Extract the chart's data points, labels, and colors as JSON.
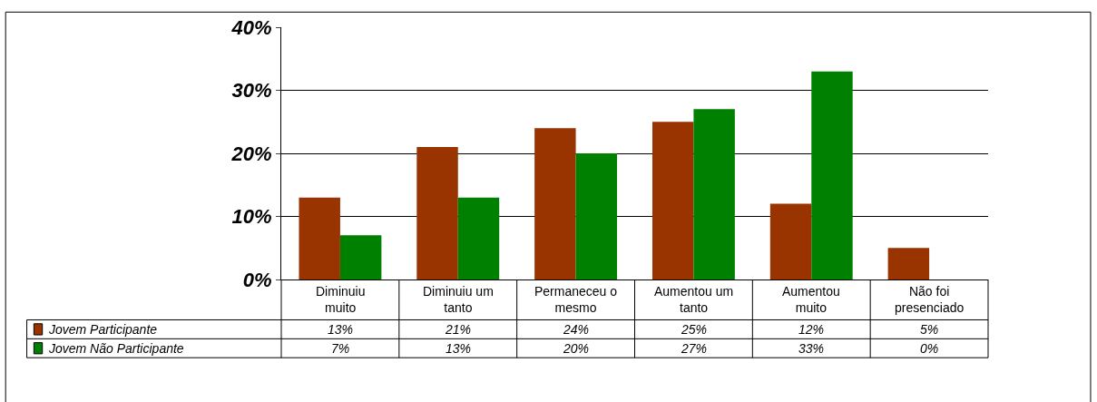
{
  "chart_data": {
    "type": "bar",
    "categories": [
      "Diminuiu muito",
      "Diminuiu um tanto",
      "Permaneceu o mesmo",
      "Aumentou um tanto",
      "Aumentou muito",
      "Não foi presenciado"
    ],
    "series": [
      {
        "name": "Jovem Participante",
        "color": "#993300",
        "values": [
          13,
          21,
          24,
          25,
          12,
          5
        ],
        "value_labels": [
          "13%",
          "21%",
          "24%",
          "25%",
          "12%",
          "5%"
        ]
      },
      {
        "name": "Jovem Não Participante",
        "color": "#008000",
        "values": [
          7,
          13,
          20,
          27,
          33,
          0
        ],
        "value_labels": [
          "7%",
          "13%",
          "20%",
          "27%",
          "33%",
          "0%"
        ]
      }
    ],
    "ylim": [
      0,
      40
    ],
    "yticks": [
      {
        "value": 0,
        "label": "0%"
      },
      {
        "value": 10,
        "label": "10%"
      },
      {
        "value": 20,
        "label": "20%"
      },
      {
        "value": 30,
        "label": "30%"
      },
      {
        "value": 40,
        "label": "40%"
      }
    ],
    "grid": "y",
    "legend": "bottom left"
  }
}
